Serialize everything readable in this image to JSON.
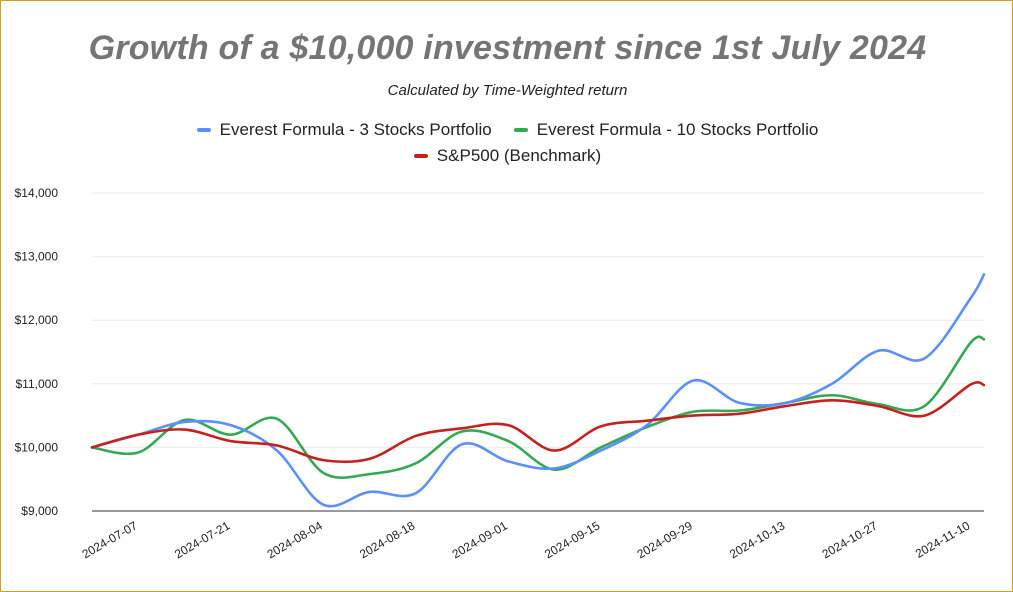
{
  "chart_data": {
    "type": "line",
    "title": "Growth of a $10,000 investment since 1st July 2024",
    "subtitle": "Calculated by Time-Weighted return",
    "xlabel": "",
    "ylabel": "",
    "ylim": [
      9000,
      14000
    ],
    "y_ticks": [
      9000,
      10000,
      11000,
      12000,
      13000,
      14000
    ],
    "y_tick_labels": [
      "$9,000",
      "$10,000",
      "$11,000",
      "$12,000",
      "$13,000",
      "$14,000"
    ],
    "x_tick_labels": [
      "2024-07-07",
      "2024-07-21",
      "2024-08-04",
      "2024-08-18",
      "2024-09-01",
      "2024-09-15",
      "2024-09-29",
      "2024-10-13",
      "2024-10-27",
      "2024-11-10"
    ],
    "x": [
      "2024-06-30",
      "2024-07-07",
      "2024-07-14",
      "2024-07-21",
      "2024-07-28",
      "2024-08-04",
      "2024-08-11",
      "2024-08-18",
      "2024-08-25",
      "2024-09-01",
      "2024-09-08",
      "2024-09-15",
      "2024-09-22",
      "2024-09-29",
      "2024-10-06",
      "2024-10-13",
      "2024-10-20",
      "2024-10-27",
      "2024-11-03",
      "2024-11-10",
      "2024-11-12"
    ],
    "grid": true,
    "legend_position": "top",
    "series": [
      {
        "name": "Everest Formula - 3 Stocks Portfolio",
        "color": "#5b8ff9",
        "values": [
          10000,
          10200,
          10400,
          10350,
          9950,
          9100,
          9300,
          9280,
          10050,
          9780,
          9670,
          9950,
          10350,
          11050,
          10700,
          10700,
          11000,
          11520,
          11400,
          12350,
          12720
        ]
      },
      {
        "name": "Everest Formula - 10 Stocks Portfolio",
        "color": "#34a853",
        "values": [
          10000,
          9920,
          10430,
          10200,
          10450,
          9600,
          9580,
          9750,
          10250,
          10100,
          9650,
          10000,
          10320,
          10560,
          10580,
          10700,
          10820,
          10680,
          10650,
          11650,
          11700
        ]
      },
      {
        "name": "S&P500 (Benchmark)",
        "color": "#c5221f",
        "values": [
          10000,
          10200,
          10280,
          10100,
          10030,
          9800,
          9820,
          10180,
          10300,
          10350,
          9950,
          10330,
          10420,
          10500,
          10530,
          10650,
          10740,
          10650,
          10500,
          10990,
          10980
        ]
      }
    ]
  }
}
